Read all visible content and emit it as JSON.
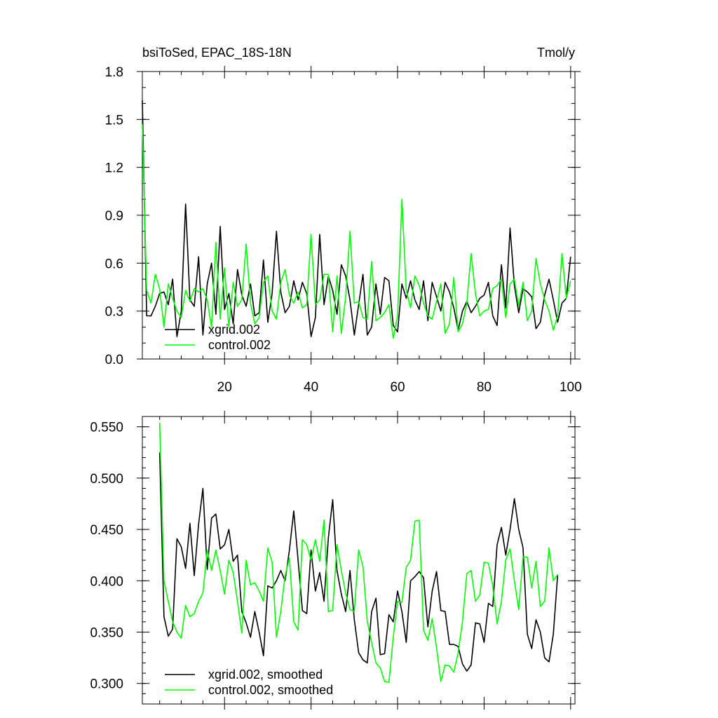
{
  "chart_data": [
    {
      "type": "line",
      "title_left": "bsiToSed, EPAC_18S-18N",
      "title_right": "Tmol/y",
      "xlim": [
        1,
        101
      ],
      "ylim": [
        0.0,
        1.8
      ],
      "xticks": [
        20,
        40,
        60,
        80,
        100
      ],
      "yticks": [
        0.0,
        0.3,
        0.6,
        0.9,
        1.2,
        1.5,
        1.8
      ],
      "ytick_labels": [
        "0.0",
        "0.3",
        "0.6",
        "0.9",
        "1.2",
        "1.5",
        "1.8"
      ],
      "legend_position": "bottom-left",
      "series": [
        {
          "name": "xgrid.002",
          "color": "#000000",
          "x_start": 1,
          "values": [
            1.62,
            0.27,
            0.27,
            0.33,
            0.41,
            0.42,
            0.34,
            0.5,
            0.14,
            0.3,
            0.97,
            0.37,
            0.33,
            0.64,
            0.15,
            0.47,
            0.6,
            0.28,
            0.83,
            0.31,
            0.41,
            0.22,
            0.56,
            0.4,
            0.33,
            0.47,
            0.27,
            0.29,
            0.62,
            0.23,
            0.41,
            0.8,
            0.42,
            0.29,
            0.33,
            0.49,
            0.37,
            0.48,
            0.41,
            0.14,
            0.26,
            0.78,
            0.34,
            0.52,
            0.43,
            0.28,
            0.59,
            0.52,
            0.37,
            0.15,
            0.34,
            0.53,
            0.15,
            0.2,
            0.47,
            0.28,
            0.51,
            0.49,
            0.21,
            0.17,
            0.47,
            0.38,
            0.49,
            0.37,
            0.31,
            0.49,
            0.24,
            0.48,
            0.39,
            0.3,
            0.48,
            0.42,
            0.32,
            0.18,
            0.3,
            0.36,
            0.29,
            0.33,
            0.38,
            0.4,
            0.48,
            0.27,
            0.21,
            0.59,
            0.32,
            0.82,
            0.46,
            0.29,
            0.44,
            0.42,
            0.39,
            0.19,
            0.23,
            0.4,
            0.5,
            0.37,
            0.23,
            0.35,
            0.38,
            0.64
          ]
        },
        {
          "name": "control.002",
          "color": "#00ff00",
          "x_start": 1,
          "values": [
            1.47,
            0.43,
            0.35,
            0.53,
            0.44,
            0.2,
            0.47,
            0.38,
            0.3,
            0.26,
            0.43,
            0.36,
            0.44,
            0.42,
            0.44,
            0.37,
            0.2,
            0.73,
            0.25,
            0.57,
            0.2,
            0.48,
            0.33,
            0.37,
            0.72,
            0.35,
            0.22,
            0.26,
            0.48,
            0.52,
            0.3,
            0.25,
            0.48,
            0.56,
            0.4,
            0.35,
            0.42,
            0.32,
            0.34,
            0.78,
            0.34,
            0.37,
            0.53,
            0.53,
            0.17,
            0.52,
            0.16,
            0.39,
            0.8,
            0.35,
            0.36,
            0.26,
            0.25,
            0.61,
            0.24,
            0.26,
            0.29,
            0.34,
            0.13,
            0.27,
            1.0,
            0.43,
            0.32,
            0.52,
            0.46,
            0.35,
            0.27,
            0.25,
            0.36,
            0.47,
            0.16,
            0.22,
            0.51,
            0.17,
            0.22,
            0.35,
            0.66,
            0.41,
            0.27,
            0.3,
            0.31,
            0.44,
            0.46,
            0.5,
            0.26,
            0.47,
            0.5,
            0.33,
            0.48,
            0.24,
            0.3,
            0.63,
            0.47,
            0.37,
            0.3,
            0.18,
            0.27,
            0.66,
            0.38,
            0.49
          ]
        }
      ]
    },
    {
      "type": "line",
      "xlim": [
        1,
        101
      ],
      "ylim": [
        0.28,
        0.56
      ],
      "xticks": [
        20,
        40,
        60,
        80,
        100
      ],
      "yticks": [
        0.3,
        0.35,
        0.4,
        0.45,
        0.5,
        0.55
      ],
      "ytick_labels": [
        "0.300",
        "0.350",
        "0.400",
        "0.450",
        "0.500",
        "0.550"
      ],
      "legend_position": "bottom-left",
      "series": [
        {
          "name": "xgrid.002, smoothed",
          "color": "#000000",
          "x_start": 5,
          "values": [
            0.525,
            0.365,
            0.346,
            0.353,
            0.441,
            0.433,
            0.412,
            0.456,
            0.405,
            0.455,
            0.49,
            0.411,
            0.461,
            0.465,
            0.431,
            0.435,
            0.45,
            0.419,
            0.425,
            0.37,
            0.359,
            0.345,
            0.37,
            0.35,
            0.327,
            0.395,
            0.393,
            0.4,
            0.41,
            0.4,
            0.43,
            0.468,
            0.42,
            0.371,
            0.368,
            0.43,
            0.39,
            0.408,
            0.38,
            0.442,
            0.479,
            0.41,
            0.387,
            0.37,
            0.41,
            0.362,
            0.33,
            0.323,
            0.32,
            0.37,
            0.383,
            0.328,
            0.329,
            0.367,
            0.36,
            0.39,
            0.37,
            0.34,
            0.4,
            0.404,
            0.409,
            0.403,
            0.355,
            0.39,
            0.409,
            0.371,
            0.37,
            0.338,
            0.338,
            0.336,
            0.319,
            0.312,
            0.318,
            0.359,
            0.358,
            0.34,
            0.378,
            0.375,
            0.435,
            0.452,
            0.425,
            0.45,
            0.48,
            0.45,
            0.432,
            0.348,
            0.334,
            0.362,
            0.35,
            0.325,
            0.321,
            0.348,
            0.406
          ]
        },
        {
          "name": "control.002, smoothed",
          "color": "#00ff00",
          "x_start": 5,
          "values": [
            0.554,
            0.4,
            0.38,
            0.36,
            0.35,
            0.344,
            0.376,
            0.365,
            0.368,
            0.38,
            0.388,
            0.43,
            0.41,
            0.43,
            0.41,
            0.387,
            0.42,
            0.408,
            0.38,
            0.349,
            0.42,
            0.396,
            0.398,
            0.39,
            0.38,
            0.432,
            0.418,
            0.345,
            0.37,
            0.405,
            0.422,
            0.36,
            0.352,
            0.44,
            0.435,
            0.42,
            0.44,
            0.419,
            0.459,
            0.37,
            0.371,
            0.435,
            0.41,
            0.388,
            0.372,
            0.37,
            0.43,
            0.414,
            0.36,
            0.34,
            0.32,
            0.315,
            0.302,
            0.301,
            0.345,
            0.38,
            0.379,
            0.413,
            0.42,
            0.458,
            0.459,
            0.352,
            0.342,
            0.363,
            0.335,
            0.302,
            0.318,
            0.317,
            0.311,
            0.33,
            0.36,
            0.407,
            0.41,
            0.38,
            0.386,
            0.418,
            0.417,
            0.395,
            0.358,
            0.38,
            0.42,
            0.431,
            0.4,
            0.372,
            0.423,
            0.423,
            0.393,
            0.419,
            0.375,
            0.38,
            0.432,
            0.4,
            0.406
          ]
        }
      ]
    }
  ]
}
